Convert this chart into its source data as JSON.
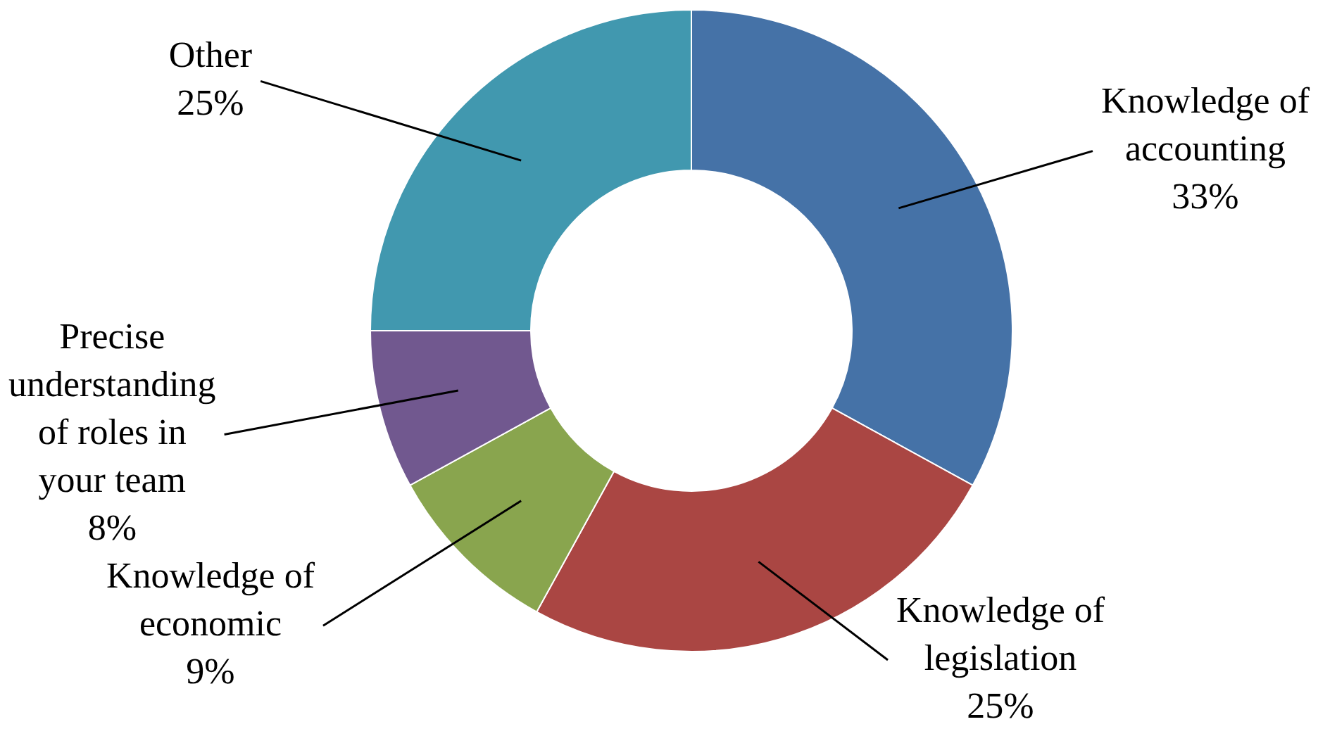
{
  "chart_data": {
    "type": "donut",
    "categories": [
      "Knowledge of accounting",
      "Knowledge of legislation",
      "Knowledge of economic",
      "Precise understanding of roles in your team",
      "Other"
    ],
    "values": [
      33,
      25,
      9,
      8,
      25
    ],
    "colors": [
      "#4572a7",
      "#aa4643",
      "#89a54e",
      "#71588f",
      "#4198af"
    ],
    "value_labels": [
      "33%",
      "25%",
      "9%",
      "8%",
      "25%"
    ],
    "legend": false
  }
}
